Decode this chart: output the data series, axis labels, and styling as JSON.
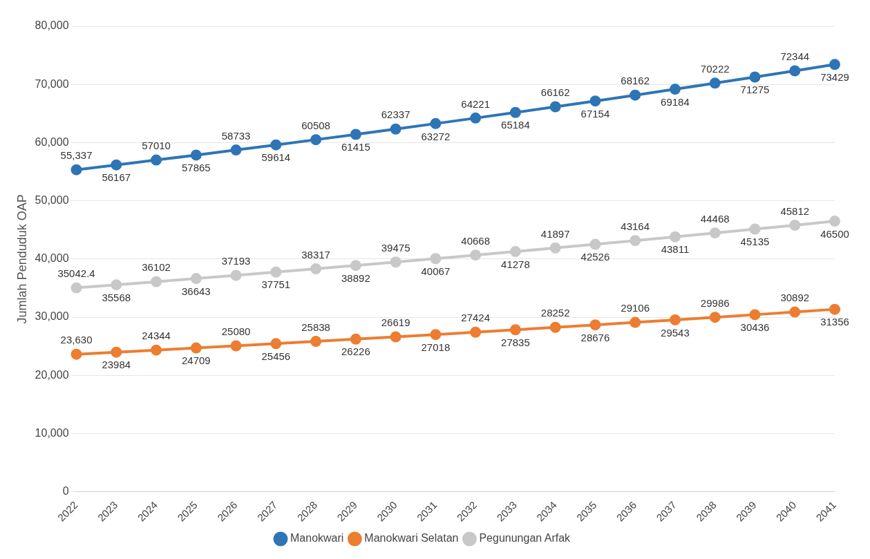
{
  "chart_data": {
    "type": "line",
    "ylabel": "Jumlah Penduduk OAP",
    "categories": [
      "2022",
      "2023",
      "2024",
      "2025",
      "2026",
      "2027",
      "2028",
      "2029",
      "2030",
      "2031",
      "2032",
      "2033",
      "2034",
      "2035",
      "2036",
      "2037",
      "2038",
      "2039",
      "2040",
      "2041"
    ],
    "ylim": [
      0,
      80000
    ],
    "yticks": [
      0,
      {
        "value": 10000,
        "label": "10,000"
      },
      {
        "value": 20000,
        "label": "20,000"
      },
      {
        "value": 30000,
        "label": "30,000"
      },
      {
        "value": 40000,
        "label": "40,000"
      },
      {
        "value": 50000,
        "label": "50,000"
      },
      {
        "value": 60000,
        "label": "60,000"
      },
      {
        "value": 70000,
        "label": "70,000"
      },
      {
        "value": 80000,
        "label": "80,000"
      }
    ],
    "grid": "y",
    "legend": "bottom",
    "marker": "circle",
    "line_style": "solid",
    "series": [
      {
        "name": "Manokwari",
        "color": "#2e75b6",
        "values": [
          55337,
          56167,
          57010,
          57865,
          58733,
          59614,
          60508,
          61415,
          62337,
          63272,
          64221,
          65184,
          66162,
          67154,
          68162,
          69184,
          70222,
          71275,
          72344,
          73429
        ],
        "value_labels": [
          "55,337",
          "56167",
          "57010",
          "57865",
          "58733",
          "59614",
          "60508",
          "61415",
          "62337",
          "63272",
          "64221",
          "65184",
          "66162",
          "67154",
          "68162",
          "69184",
          "70222",
          "71275",
          "72344",
          "73429"
        ]
      },
      {
        "name": "Manokwari Selatan",
        "color": "#ed7d31",
        "values": [
          23630,
          23984,
          24344,
          24709,
          25080,
          25456,
          25838,
          26226,
          26619,
          27018,
          27424,
          27835,
          28252,
          28676,
          29106,
          29543,
          29986,
          30436,
          30892,
          31356
        ],
        "value_labels": [
          "23,630",
          "23984",
          "24344",
          "24709",
          "25080",
          "25456",
          "25838",
          "26226",
          "26619",
          "27018",
          "27424",
          "27835",
          "28252",
          "28676",
          "29106",
          "29543",
          "29986",
          "30436",
          "30892",
          "31356"
        ]
      },
      {
        "name": "Pegunungan Arfak",
        "color": "#c8c8c8",
        "values": [
          35042.4,
          35568,
          36102,
          36643,
          37193,
          37751,
          38317,
          38892,
          39475,
          40067,
          40668,
          41278,
          41897,
          42526,
          43164,
          43811,
          44468,
          45135,
          45812,
          46500
        ],
        "value_labels": [
          "35042.4",
          "35568",
          "36102",
          "36643",
          "37193",
          "37751",
          "38317",
          "38892",
          "39475",
          "40067",
          "40668",
          "41278",
          "41897",
          "42526",
          "43164",
          "43811",
          "44468",
          "45135",
          "45812",
          "46500"
        ]
      }
    ]
  }
}
